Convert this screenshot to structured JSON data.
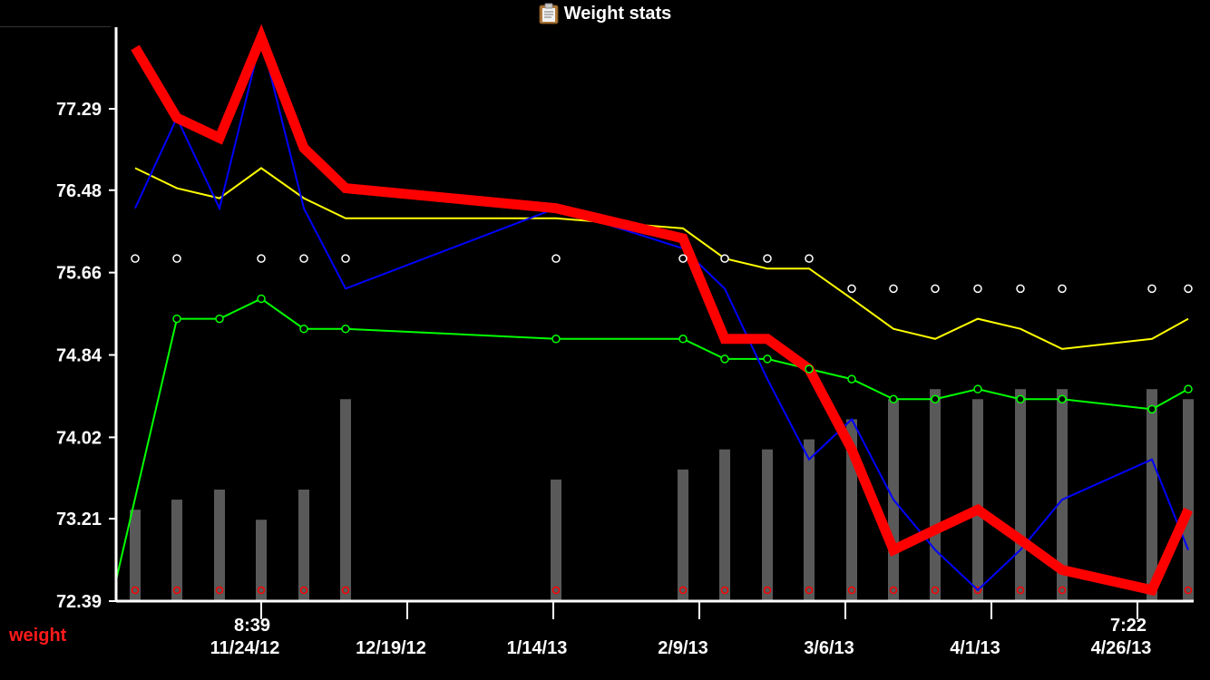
{
  "title": "Weight stats",
  "series_label": "weight",
  "colors": {
    "background": "#000000",
    "weight": "#ff0000",
    "trend_blue": "#0000ff",
    "trend_yellow": "#ffff00",
    "trend_green": "#00ff00",
    "bars": "#595959",
    "axis": "#ffffff"
  },
  "icons": {
    "title": "clipboard-icon"
  },
  "chart_data": {
    "type": "line",
    "ylim": [
      72.39,
      77.29
    ],
    "y_ticks": [
      "77.29",
      "76.48",
      "75.66",
      "74.84",
      "74.02",
      "73.21",
      "72.39"
    ],
    "x_tick_labels": [
      {
        "time": "8:39",
        "date": "11/24/12"
      },
      {
        "time": "",
        "date": "12/19/12"
      },
      {
        "time": "",
        "date": "1/14/13"
      },
      {
        "time": "",
        "date": "2/9/13"
      },
      {
        "time": "",
        "date": "3/6/13"
      },
      {
        "time": "",
        "date": "4/1/13"
      },
      {
        "time": "7:22",
        "date": "4/26/13"
      }
    ],
    "x": [
      "11/16/12",
      "11/20/12",
      "11/24/12",
      "11/28/12",
      "12/2/12",
      "12/6/12",
      "1/14/13",
      "2/7/13",
      "2/15/13",
      "2/22/13",
      "3/2/13",
      "3/10/13",
      "3/18/13",
      "3/26/13",
      "4/3/13",
      "4/11/13",
      "4/19/13",
      "4/27/13",
      "5/4/13"
    ],
    "series": [
      {
        "name": "weight",
        "color": "#ff0000",
        "values": [
          77.9,
          77.2,
          77.0,
          78.0,
          76.9,
          76.5,
          76.3,
          76.0,
          75.0,
          75.0,
          74.7,
          73.9,
          72.9,
          73.1,
          73.3,
          73.0,
          72.7,
          72.5,
          73.3
        ]
      },
      {
        "color": "#0000ff",
        "values": [
          76.3,
          77.2,
          76.3,
          78.0,
          76.3,
          75.5,
          76.3,
          75.9,
          75.5,
          74.6,
          73.8,
          74.2,
          73.4,
          72.9,
          72.5,
          72.9,
          73.4,
          73.8,
          72.9
        ]
      },
      {
        "color": "#ffff00",
        "values": [
          76.7,
          76.5,
          76.4,
          76.7,
          76.4,
          76.2,
          76.2,
          76.1,
          75.8,
          75.7,
          75.7,
          75.4,
          75.1,
          75.0,
          75.2,
          75.1,
          74.9,
          75.0,
          75.2
        ]
      },
      {
        "color": "#00ff00",
        "markers": true,
        "values": [
          72.6,
          75.2,
          75.2,
          75.4,
          75.1,
          75.1,
          75.0,
          75.0,
          74.8,
          74.8,
          74.7,
          74.6,
          74.4,
          74.4,
          74.5,
          74.4,
          74.4,
          74.3,
          74.5
        ]
      }
    ],
    "bars": {
      "color": "#595959",
      "values": [
        73.3,
        73.4,
        73.5,
        73.2,
        73.5,
        74.4,
        73.6,
        73.7,
        73.9,
        73.9,
        74.0,
        74.2,
        74.4,
        74.5,
        74.4,
        74.5,
        74.5,
        74.5,
        74.4
      ]
    },
    "white_markers": {
      "color": "#ffffff",
      "values": [
        75.8,
        75.8,
        null,
        75.8,
        75.8,
        75.8,
        75.8,
        75.8,
        75.8,
        75.8,
        75.8,
        75.5,
        75.5,
        75.5,
        75.5,
        75.5,
        75.5,
        75.5,
        75.5
      ]
    },
    "grid": false
  }
}
